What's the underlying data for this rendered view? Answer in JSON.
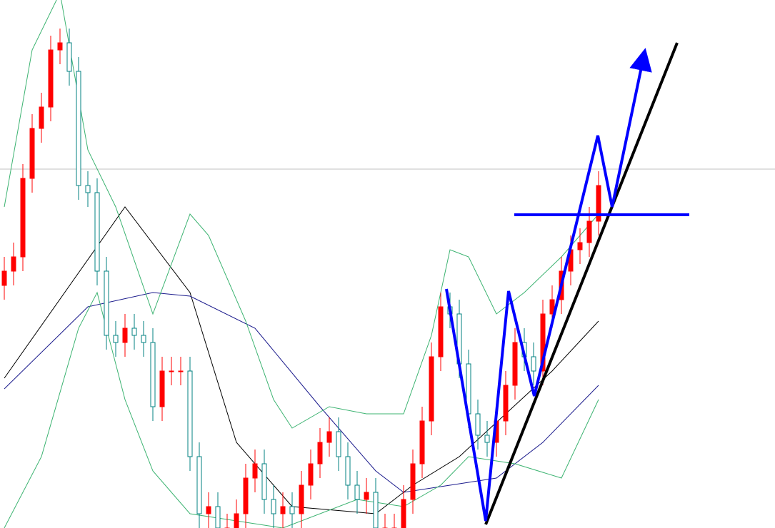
{
  "chart_data": {
    "type": "candlestick",
    "ylim": [
      0,
      74
    ],
    "up_color": "#ff0000",
    "down_color": "#008080",
    "open": [
      34,
      36,
      38,
      49,
      56,
      59,
      67,
      68,
      64,
      48,
      47,
      36,
      27,
      26,
      28,
      27,
      26,
      17,
      22,
      22,
      22,
      10,
      2,
      3,
      0,
      0,
      2,
      7,
      9,
      4,
      2,
      3,
      2,
      6,
      9,
      12,
      13.5,
      10,
      6,
      4,
      5,
      0,
      0,
      0,
      4,
      9,
      15,
      24,
      31,
      30,
      23,
      16,
      13,
      12,
      15,
      20,
      26,
      24,
      22,
      30,
      32,
      36,
      39,
      40,
      43
    ],
    "high": [
      38,
      40,
      51,
      58,
      61,
      69,
      70,
      70,
      66,
      50,
      49,
      38,
      29,
      30,
      30,
      29,
      28,
      24,
      24,
      24,
      24,
      12,
      5,
      5,
      2,
      4,
      9,
      11,
      11,
      6,
      5,
      5,
      8,
      11,
      14,
      15.5,
      15.5,
      12,
      8,
      7,
      7,
      2,
      2,
      6,
      11,
      17,
      26,
      33,
      33,
      32,
      25,
      18,
      15,
      17,
      22,
      28,
      28,
      26,
      32,
      34,
      38,
      41,
      42,
      45,
      50
    ],
    "low": [
      32,
      34,
      36,
      47,
      54,
      57,
      65,
      62,
      46,
      45,
      34,
      25,
      24,
      24,
      25,
      24,
      15,
      15,
      20,
      20,
      8,
      0,
      0,
      -2,
      -2,
      -2,
      0,
      5,
      2,
      0,
      0,
      0,
      0,
      4,
      7,
      10,
      8,
      4,
      2,
      2,
      -2,
      -2,
      -2,
      -2,
      2,
      7,
      13,
      22,
      28,
      21,
      14,
      11,
      10,
      10,
      13,
      18,
      22,
      20,
      20,
      28,
      30,
      34,
      37,
      38,
      41
    ],
    "close": [
      36,
      38,
      49,
      56,
      59,
      67,
      68,
      64,
      48,
      47,
      36,
      27,
      26,
      28,
      27,
      26,
      17,
      22,
      22,
      22,
      10,
      2,
      3,
      0,
      0,
      2,
      7,
      9,
      4,
      2,
      3,
      2,
      6,
      9,
      12,
      13.5,
      10,
      6,
      4,
      5,
      0,
      0,
      0,
      4,
      9,
      15,
      24,
      31,
      30,
      23,
      16,
      13,
      12,
      15,
      20,
      26,
      24,
      22,
      30,
      32,
      36,
      39,
      40,
      43,
      48
    ],
    "overlays": [
      {
        "color": "#000000",
        "x": [
          0,
          13,
          20,
          25,
          31,
          40,
          44,
          49,
          54,
          59,
          64
        ],
        "values": [
          21,
          45,
          33,
          12,
          3,
          2,
          6,
          10,
          16,
          22,
          29
        ]
      },
      {
        "color": "#1a1a8c",
        "x": [
          0,
          9,
          16,
          20,
          27,
          34,
          40,
          43,
          48,
          53,
          58,
          64
        ],
        "values": [
          19.5,
          31,
          33,
          32.5,
          28,
          17,
          8,
          5,
          6,
          7,
          12,
          20
        ]
      },
      {
        "color": "#3cb371",
        "x": [
          0,
          3,
          6,
          9,
          12,
          16,
          20,
          22,
          26,
          29,
          31,
          35,
          39,
          43,
          46,
          48,
          50,
          53,
          56,
          60,
          64
        ],
        "values": [
          45,
          67,
          75,
          53,
          45,
          30,
          44,
          41,
          29,
          18,
          14,
          17,
          16,
          16,
          27,
          39,
          38,
          30,
          33,
          38,
          44
        ]
      },
      {
        "color": "#3cb371",
        "x": [
          0,
          4,
          8,
          10,
          13,
          16,
          20,
          30,
          38,
          43,
          47,
          50,
          55,
          60,
          64
        ],
        "values": [
          0,
          10,
          28,
          33,
          18,
          8,
          2,
          0,
          4,
          3,
          6,
          10,
          9,
          7,
          18
        ]
      }
    ]
  }
}
